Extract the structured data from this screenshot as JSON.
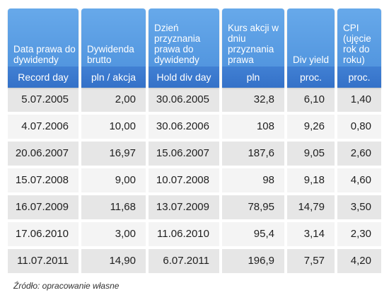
{
  "columns": [
    {
      "title": "Data prawa do dywidendy",
      "unit": "Record day"
    },
    {
      "title": "Dywidenda brutto",
      "unit": "pln / akcja"
    },
    {
      "title": "Dzień przyznania prawa do dywidendy",
      "unit": "Hold div day"
    },
    {
      "title": "Kurs akcji w dniu przyznania prawa",
      "unit": "pln"
    },
    {
      "title": "Div yield",
      "unit": "proc."
    },
    {
      "title": "CPI (ujęcie rok do roku)",
      "unit": "proc."
    }
  ],
  "rows": [
    [
      "5.07.2005",
      "2,00",
      "30.06.2005",
      "32,8",
      "6,10",
      "1,40"
    ],
    [
      "4.07.2006",
      "10,00",
      "30.06.2006",
      "108",
      "9,26",
      "0,80"
    ],
    [
      "20.06.2007",
      "16,97",
      "15.06.2007",
      "187,6",
      "9,05",
      "2,60"
    ],
    [
      "15.07.2008",
      "9,00",
      "10.07.2008",
      "98",
      "9,18",
      "4,60"
    ],
    [
      "16.07.2009",
      "11,68",
      "13.07.2009",
      "78,95",
      "14,79",
      "3,50"
    ],
    [
      "17.06.2010",
      "3,00",
      "11.06.2010",
      "95,4",
      "3,14",
      "2,30"
    ],
    [
      "11.07.2011",
      "14,90",
      "6.07.2011",
      "196,9",
      "7,57",
      "4,20"
    ]
  ],
  "source": "Źródło: opracowanie własne",
  "colors": {
    "header": "#4b8fdb",
    "unit_band": "#3471c8",
    "row_dark": "#e6e6e6",
    "row_light": "#f4f4f4"
  }
}
